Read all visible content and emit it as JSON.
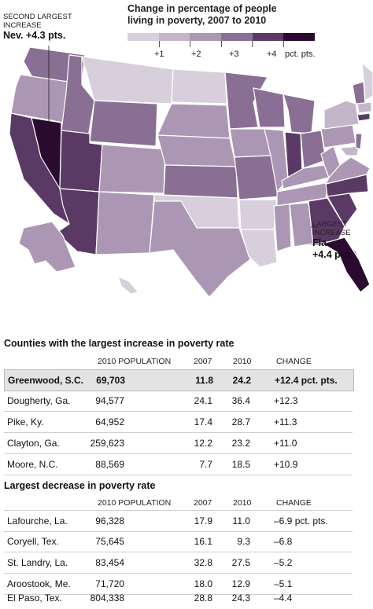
{
  "legend": {
    "title_line1": "Change in percentage of people",
    "title_line2": "living in poverty, 2007 to 2010",
    "ticks": [
      "+1",
      "+2",
      "+3",
      "+4"
    ],
    "tick_suffix": "pct. pts.",
    "colors": [
      "#d8cfdc",
      "#c4b5c9",
      "#ab97b3",
      "#8a6f94",
      "#5a3a64",
      "#2b0a30"
    ]
  },
  "notes": {
    "second": {
      "line1": "SECOND LARGEST",
      "line2": "INCREASE",
      "value": "Nev. +4.3 pts."
    },
    "largest": {
      "line1": "LARGEST",
      "line2": "INCREASE",
      "state": "Fla.",
      "value": "+4.4 pts."
    }
  },
  "increase_table": {
    "title": "Counties with the largest increase in poverty rate",
    "headers": {
      "pop": "2010 POPULATION",
      "y2007": "2007",
      "y2010": "2010",
      "change": "CHANGE"
    },
    "rows": [
      {
        "name": "Greenwood, S.C.",
        "pop": "69,703",
        "y2007": "11.8",
        "y2010": "24.2",
        "change": "+12.4  pct. pts."
      },
      {
        "name": "Dougherty, Ga.",
        "pop": "94,577",
        "y2007": "24.1",
        "y2010": "36.4",
        "change": "+12.3"
      },
      {
        "name": "Pike, Ky.",
        "pop": "64,952",
        "y2007": "17.4",
        "y2010": "28.7",
        "change": "+11.3"
      },
      {
        "name": "Clayton, Ga.",
        "pop": "259,623",
        "y2007": "12.2",
        "y2010": "23.2",
        "change": "+11.0"
      },
      {
        "name": "Moore, N.C.",
        "pop": "88,569",
        "y2007": "7.7",
        "y2010": "18.5",
        "change": "+10.9"
      }
    ]
  },
  "decrease_table": {
    "title": "Largest decrease in poverty rate",
    "headers": {
      "pop": "2010 POPULATION",
      "y2007": "2007",
      "y2010": "2010",
      "change": "CHANGE"
    },
    "rows": [
      {
        "name": "Lafourche, La.",
        "pop": "96,328",
        "y2007": "17.9",
        "y2010": "11.0",
        "change": "–6.9  pct. pts."
      },
      {
        "name": "Coryell, Tex.",
        "pop": "75,645",
        "y2007": "16.1",
        "y2010": "9.3",
        "change": "–6.8"
      },
      {
        "name": "St. Landry, La.",
        "pop": "83,454",
        "y2007": "32.8",
        "y2010": "27.5",
        "change": "–5.2"
      },
      {
        "name": "Aroostook, Me.",
        "pop": "71,720",
        "y2007": "18.0",
        "y2010": "12.9",
        "change": "–5.1"
      },
      {
        "name": "El Paso, Tex.",
        "pop": "804,338",
        "y2007": "28.8",
        "y2010": "24.3",
        "change": "–4.4"
      }
    ]
  }
}
